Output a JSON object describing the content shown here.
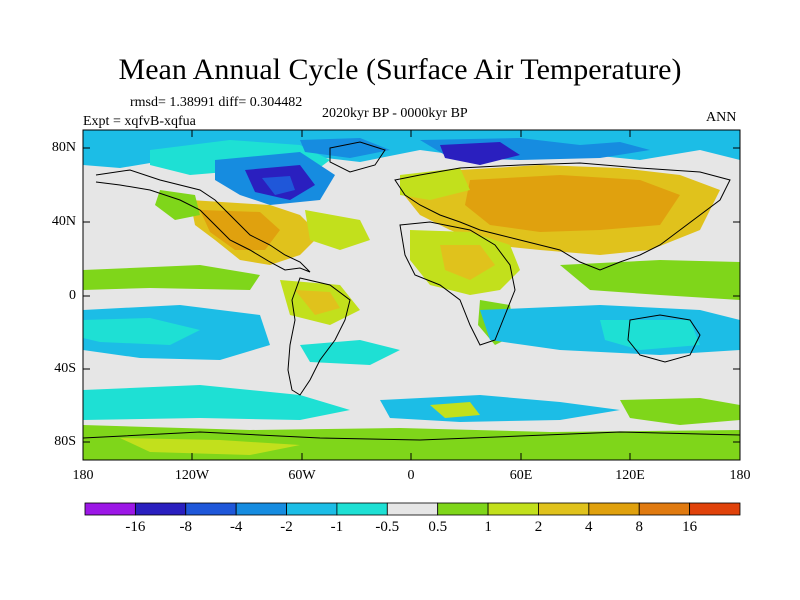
{
  "title": "Mean Annual Cycle (Surface Air Temperature)",
  "stats_label": "rmsd= 1.38991 diff= 0.304482",
  "experiment_label": "Expt = xqfvB-xqfua",
  "period_label": "2020kyr BP - 0000kyr BP",
  "season_label": "ANN",
  "lat_ticks": [
    "80N",
    "40N",
    "0",
    "40S",
    "80S"
  ],
  "lon_ticks": [
    "180",
    "120W",
    "60W",
    "0",
    "60E",
    "120E",
    "180"
  ],
  "colorbar": {
    "labels": [
      "-16",
      "-8",
      "-4",
      "-2",
      "-1",
      "-0.5",
      "0.5",
      "1",
      "2",
      "4",
      "8",
      "16"
    ],
    "colors": [
      "#9c17e6",
      "#2a1fbf",
      "#1f57d9",
      "#168ce0",
      "#1cbde6",
      "#1ee0d4",
      "#e6e6e6",
      "#7fd61a",
      "#c2e01c",
      "#e0c21c",
      "#e0a10e",
      "#e07a10",
      "#e0420a"
    ]
  },
  "colors": {
    "no_change": "#e6e6e6",
    "coast": "#000000"
  }
}
